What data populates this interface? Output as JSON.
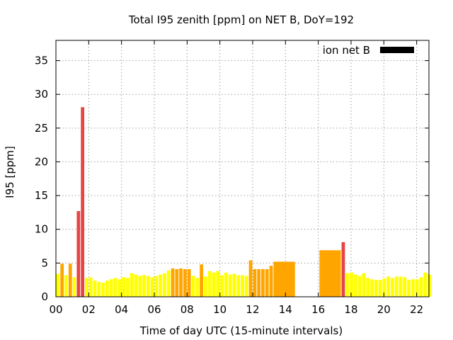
{
  "chart_data": {
    "type": "bar",
    "title": "Total I95 zenith [ppm] on NET B, DoY=192",
    "xlabel": "Time of day UTC (15-minute intervals)",
    "ylabel": "I95 [ppm]",
    "ylim": [
      0,
      38
    ],
    "xlim": [
      0,
      22.75
    ],
    "x_tick_labels": [
      "00",
      "02",
      "04",
      "06",
      "08",
      "10",
      "12",
      "14",
      "16",
      "18",
      "20",
      "22"
    ],
    "x_tick_values": [
      0,
      2,
      4,
      6,
      8,
      10,
      12,
      14,
      16,
      18,
      20,
      22
    ],
    "y_ticks": [
      0,
      5,
      10,
      15,
      20,
      25,
      30,
      35
    ],
    "grid": true,
    "legend": {
      "label": "ion net B",
      "color": "#000000",
      "position": "top-right"
    },
    "colors": {
      "low": "#ffff00",
      "medium": "#ffa500",
      "high": "#e64545"
    },
    "bars": [
      {
        "x": 0.0,
        "w": 0.25,
        "v": 3.4,
        "c": "low"
      },
      {
        "x": 0.25,
        "w": 0.25,
        "v": 4.9,
        "c": "medium"
      },
      {
        "x": 0.5,
        "w": 0.25,
        "v": 3.2,
        "c": "low"
      },
      {
        "x": 0.75,
        "w": 0.25,
        "v": 4.9,
        "c": "medium"
      },
      {
        "x": 1.0,
        "w": 0.25,
        "v": 2.9,
        "c": "low"
      },
      {
        "x": 1.25,
        "w": 0.25,
        "v": 12.7,
        "c": "high"
      },
      {
        "x": 1.5,
        "w": 0.25,
        "v": 28.1,
        "c": "high"
      },
      {
        "x": 1.75,
        "w": 0.25,
        "v": 2.8,
        "c": "low"
      },
      {
        "x": 2.0,
        "w": 0.25,
        "v": 2.9,
        "c": "low"
      },
      {
        "x": 2.25,
        "w": 0.25,
        "v": 2.4,
        "c": "low"
      },
      {
        "x": 2.5,
        "w": 0.25,
        "v": 2.2,
        "c": "low"
      },
      {
        "x": 2.75,
        "w": 0.25,
        "v": 2.1,
        "c": "low"
      },
      {
        "x": 3.0,
        "w": 0.25,
        "v": 2.4,
        "c": "low"
      },
      {
        "x": 3.25,
        "w": 0.25,
        "v": 2.6,
        "c": "low"
      },
      {
        "x": 3.5,
        "w": 0.25,
        "v": 2.8,
        "c": "low"
      },
      {
        "x": 3.75,
        "w": 0.25,
        "v": 2.6,
        "c": "low"
      },
      {
        "x": 4.0,
        "w": 0.25,
        "v": 2.9,
        "c": "low"
      },
      {
        "x": 4.25,
        "w": 0.25,
        "v": 2.8,
        "c": "low"
      },
      {
        "x": 4.5,
        "w": 0.25,
        "v": 3.5,
        "c": "low"
      },
      {
        "x": 4.75,
        "w": 0.25,
        "v": 3.3,
        "c": "low"
      },
      {
        "x": 5.0,
        "w": 0.25,
        "v": 3.1,
        "c": "low"
      },
      {
        "x": 5.25,
        "w": 0.25,
        "v": 3.2,
        "c": "low"
      },
      {
        "x": 5.5,
        "w": 0.25,
        "v": 3.1,
        "c": "low"
      },
      {
        "x": 5.75,
        "w": 0.25,
        "v": 2.9,
        "c": "low"
      },
      {
        "x": 6.0,
        "w": 0.25,
        "v": 3.1,
        "c": "low"
      },
      {
        "x": 6.25,
        "w": 0.25,
        "v": 3.3,
        "c": "low"
      },
      {
        "x": 6.5,
        "w": 0.25,
        "v": 3.5,
        "c": "low"
      },
      {
        "x": 6.75,
        "w": 0.25,
        "v": 3.9,
        "c": "low"
      },
      {
        "x": 7.0,
        "w": 0.25,
        "v": 4.2,
        "c": "medium"
      },
      {
        "x": 7.25,
        "w": 0.25,
        "v": 4.1,
        "c": "medium"
      },
      {
        "x": 7.5,
        "w": 0.25,
        "v": 4.2,
        "c": "medium"
      },
      {
        "x": 7.75,
        "w": 0.25,
        "v": 4.1,
        "c": "medium"
      },
      {
        "x": 8.0,
        "w": 0.25,
        "v": 4.1,
        "c": "medium"
      },
      {
        "x": 8.25,
        "w": 0.25,
        "v": 3.1,
        "c": "low"
      },
      {
        "x": 8.5,
        "w": 0.25,
        "v": 2.8,
        "c": "low"
      },
      {
        "x": 8.75,
        "w": 0.25,
        "v": 4.8,
        "c": "medium"
      },
      {
        "x": 9.0,
        "w": 0.25,
        "v": 3.0,
        "c": "low"
      },
      {
        "x": 9.25,
        "w": 0.25,
        "v": 3.8,
        "c": "low"
      },
      {
        "x": 9.5,
        "w": 0.25,
        "v": 3.6,
        "c": "low"
      },
      {
        "x": 9.75,
        "w": 0.25,
        "v": 3.8,
        "c": "low"
      },
      {
        "x": 10.0,
        "w": 0.25,
        "v": 3.2,
        "c": "low"
      },
      {
        "x": 10.25,
        "w": 0.25,
        "v": 3.6,
        "c": "low"
      },
      {
        "x": 10.5,
        "w": 0.25,
        "v": 3.3,
        "c": "low"
      },
      {
        "x": 10.75,
        "w": 0.25,
        "v": 3.4,
        "c": "low"
      },
      {
        "x": 11.0,
        "w": 0.25,
        "v": 3.2,
        "c": "low"
      },
      {
        "x": 11.25,
        "w": 0.25,
        "v": 3.2,
        "c": "low"
      },
      {
        "x": 11.5,
        "w": 0.25,
        "v": 3.1,
        "c": "low"
      },
      {
        "x": 11.75,
        "w": 0.25,
        "v": 5.4,
        "c": "medium"
      },
      {
        "x": 12.0,
        "w": 0.25,
        "v": 4.1,
        "c": "medium"
      },
      {
        "x": 12.25,
        "w": 0.25,
        "v": 4.1,
        "c": "medium"
      },
      {
        "x": 12.5,
        "w": 0.25,
        "v": 4.1,
        "c": "medium"
      },
      {
        "x": 12.75,
        "w": 0.25,
        "v": 4.1,
        "c": "medium"
      },
      {
        "x": 13.0,
        "w": 0.25,
        "v": 4.6,
        "c": "medium"
      },
      {
        "x": 13.25,
        "w": 1.35,
        "v": 5.2,
        "c": "medium"
      },
      {
        "x": 16.05,
        "w": 1.35,
        "v": 6.9,
        "c": "medium"
      },
      {
        "x": 17.4,
        "w": 0.25,
        "v": 8.1,
        "c": "high"
      },
      {
        "x": 17.65,
        "w": 0.25,
        "v": 3.5,
        "c": "low"
      },
      {
        "x": 17.9,
        "w": 0.25,
        "v": 3.6,
        "c": "low"
      },
      {
        "x": 18.15,
        "w": 0.25,
        "v": 3.3,
        "c": "low"
      },
      {
        "x": 18.4,
        "w": 0.25,
        "v": 3.1,
        "c": "low"
      },
      {
        "x": 18.65,
        "w": 0.25,
        "v": 3.5,
        "c": "low"
      },
      {
        "x": 18.9,
        "w": 0.25,
        "v": 2.8,
        "c": "low"
      },
      {
        "x": 19.15,
        "w": 0.25,
        "v": 2.6,
        "c": "low"
      },
      {
        "x": 19.4,
        "w": 0.25,
        "v": 2.5,
        "c": "low"
      },
      {
        "x": 19.65,
        "w": 0.25,
        "v": 2.5,
        "c": "low"
      },
      {
        "x": 19.9,
        "w": 0.25,
        "v": 2.7,
        "c": "low"
      },
      {
        "x": 20.15,
        "w": 0.25,
        "v": 3.0,
        "c": "low"
      },
      {
        "x": 20.4,
        "w": 0.25,
        "v": 2.8,
        "c": "low"
      },
      {
        "x": 20.65,
        "w": 0.25,
        "v": 3.0,
        "c": "low"
      },
      {
        "x": 20.9,
        "w": 0.25,
        "v": 3.0,
        "c": "low"
      },
      {
        "x": 21.15,
        "w": 0.25,
        "v": 2.9,
        "c": "low"
      },
      {
        "x": 21.4,
        "w": 0.25,
        "v": 2.5,
        "c": "low"
      },
      {
        "x": 21.65,
        "w": 0.25,
        "v": 2.6,
        "c": "low"
      },
      {
        "x": 21.9,
        "w": 0.25,
        "v": 2.6,
        "c": "low"
      },
      {
        "x": 22.15,
        "w": 0.25,
        "v": 2.9,
        "c": "low"
      },
      {
        "x": 22.4,
        "w": 0.25,
        "v": 3.6,
        "c": "low"
      },
      {
        "x": 22.65,
        "w": 0.25,
        "v": 3.3,
        "c": "low"
      }
    ]
  }
}
